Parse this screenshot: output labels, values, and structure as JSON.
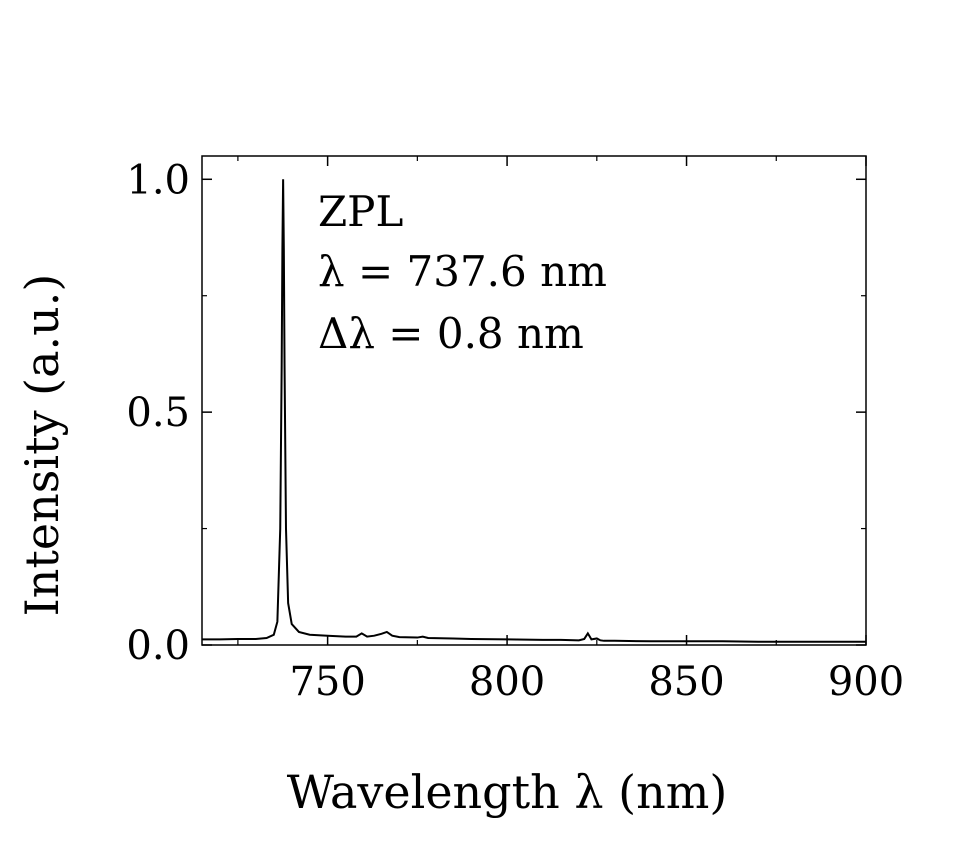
{
  "chart_data": {
    "type": "line",
    "title": "",
    "xlabel": "Wavelength λ (nm)",
    "ylabel": "Intensity (a.u.)",
    "xlim": [
      715,
      900
    ],
    "ylim": [
      0.0,
      1.05
    ],
    "x_ticks": [
      750,
      800,
      850,
      900
    ],
    "y_ticks": [
      0.0,
      0.5,
      1.0
    ],
    "x_tick_labels": [
      "750",
      "800",
      "850",
      "900"
    ],
    "y_tick_labels": [
      "0.0",
      "0.5",
      "1.0"
    ],
    "grid": false,
    "legend": "none",
    "annotations": [
      "ZPL",
      "λ = 737.6 nm",
      "Δλ = 0.8 nm"
    ],
    "series": [
      {
        "x": [
          715,
          720,
          725,
          730,
          733,
          735,
          736,
          736.8,
          737.2,
          737.4,
          737.6,
          737.8,
          738.0,
          738.4,
          739,
          740,
          742,
          745,
          750,
          755,
          758,
          759.5,
          761,
          763,
          765,
          766.5,
          768,
          770,
          775,
          776.5,
          778,
          785,
          790,
          800,
          810,
          815,
          820,
          821.5,
          822.5,
          823.5,
          825,
          826,
          827,
          830,
          840,
          850,
          860,
          870,
          880,
          890,
          900
        ],
        "values": [
          0.012,
          0.012,
          0.013,
          0.013,
          0.015,
          0.022,
          0.05,
          0.25,
          0.6,
          0.85,
          1.0,
          0.85,
          0.6,
          0.25,
          0.09,
          0.045,
          0.028,
          0.022,
          0.02,
          0.018,
          0.018,
          0.025,
          0.018,
          0.02,
          0.024,
          0.028,
          0.02,
          0.017,
          0.016,
          0.018,
          0.015,
          0.014,
          0.013,
          0.012,
          0.011,
          0.011,
          0.01,
          0.013,
          0.025,
          0.012,
          0.014,
          0.01,
          0.009,
          0.009,
          0.008,
          0.008,
          0.008,
          0.007,
          0.007,
          0.007,
          0.007
        ]
      }
    ]
  }
}
